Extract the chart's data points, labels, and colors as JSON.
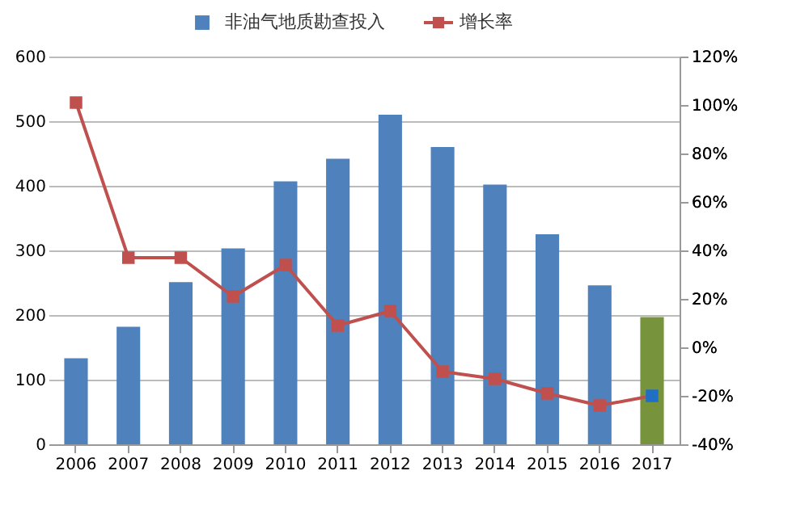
{
  "chart_data": {
    "type": "bar",
    "categories": [
      "2006",
      "2007",
      "2008",
      "2009",
      "2010",
      "2011",
      "2012",
      "2013",
      "2014",
      "2015",
      "2016",
      "2017"
    ],
    "series": [
      {
        "name": "非油气地质勘查投入",
        "color": "#4f81bd",
        "colors": [
          "#4f81bd",
          "#4f81bd",
          "#4f81bd",
          "#4f81bd",
          "#4f81bd",
          "#4f81bd",
          "#4f81bd",
          "#4f81bd",
          "#4f81bd",
          "#4f81bd",
          "#4f81bd",
          "#77933c"
        ],
        "values": [
          133,
          182,
          251,
          303,
          407,
          442,
          510,
          460,
          402,
          325,
          246,
          197
        ]
      },
      {
        "name": "增长率",
        "type": "line",
        "axis": "y2",
        "color": "#c0504d",
        "colors": [
          "#c0504d",
          "#c0504d",
          "#c0504d",
          "#c0504d",
          "#c0504d",
          "#c0504d",
          "#c0504d",
          "#c0504d",
          "#c0504d",
          "#c0504d",
          "#c0504d",
          "#1f6fc5"
        ],
        "marker": "square",
        "values": [
          101,
          37,
          37,
          21,
          34,
          9,
          15,
          -10,
          -13,
          -19,
          -24,
          -20
        ]
      }
    ],
    "ylim": [
      0,
      600
    ],
    "yticks": [
      0,
      100,
      200,
      300,
      400,
      500,
      600
    ],
    "y2lim": [
      -40,
      120
    ],
    "y2ticks": [
      {
        "value": -40,
        "label": "-40%"
      },
      {
        "value": -20,
        "label": "-20%"
      },
      {
        "value": 0,
        "label": "0%"
      },
      {
        "value": 20,
        "label": "20%"
      },
      {
        "value": 40,
        "label": "40%"
      },
      {
        "value": 60,
        "label": "60%"
      },
      {
        "value": 80,
        "label": "80%"
      },
      {
        "value": 100,
        "label": "100%"
      },
      {
        "value": 120,
        "label": "120%"
      }
    ],
    "grid": "y",
    "legend": "top"
  }
}
